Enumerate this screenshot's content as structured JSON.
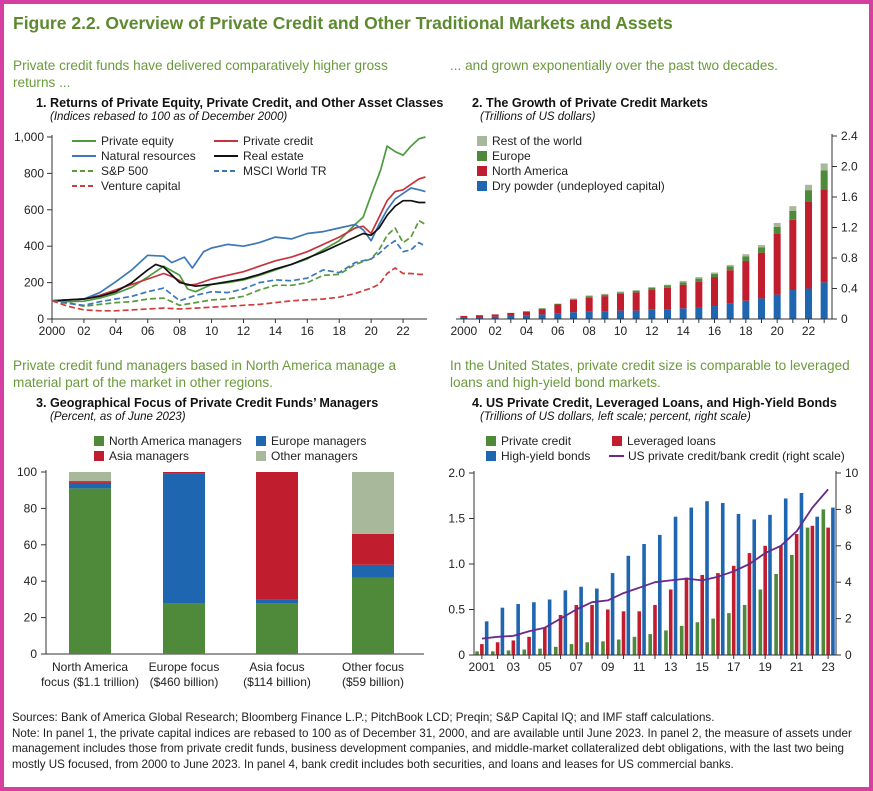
{
  "figure_title": "Figure 2.2. Overview of Private Credit and Other Traditional Markets and Assets",
  "sections": {
    "top_left": "Private credit funds have delivered comparatively higher gross returns ...",
    "top_right": "... and grown exponentially over the past two decades.",
    "bottom_left": "Private credit fund managers based in North America manage a material part of the market in other regions.",
    "bottom_right": "In the United States, private credit size is comparable to leveraged loans and high-yield bond markets."
  },
  "panels": {
    "p1": {
      "title": "1. Returns of Private Equity, Private Credit, and Other Asset Classes",
      "subtitle": "(Indices rebased to 100 as of December 2000)"
    },
    "p2": {
      "title": "2. The Growth of Private Credit Markets",
      "subtitle": "(Trillions of US dollars)"
    },
    "p3": {
      "title": "3. Geographical Focus of Private Credit Funds’ Managers",
      "subtitle": "(Percent, as of June 2023)"
    },
    "p4": {
      "title": "4. US Private Credit, Leveraged Loans, and High-Yield Bonds",
      "subtitle": "(Trillions of US dollars, left scale; percent, right scale)"
    }
  },
  "notes": {
    "sources": "Sources: Bank of America Global Research; Bloomberg Finance L.P.; PitchBook LCD; Preqin; S&P Capital IQ; and IMF staff calculations.",
    "note": "Note: In panel 1, the private capital indices are rebased to 100 as of December 31, 2000, and are available until June 2023. In panel 2, the measure of assets under management includes those from private credit funds, business development companies, and middle-market collateralized debt obligations, with the last two being mostly US focused, from 2000 to June 2023. In panel 4, bank credit includes both securities, and loans and leases for US commercial banks."
  },
  "chart_data": [
    {
      "type": "line",
      "panel": "p1",
      "x_ticks": [
        2000,
        2002,
        2004,
        2006,
        2008,
        2010,
        2012,
        2014,
        2016,
        2018,
        2020,
        2022
      ],
      "x_tick_labels": [
        "2000",
        "02",
        "04",
        "06",
        "08",
        "10",
        "12",
        "14",
        "16",
        "18",
        "20",
        "22"
      ],
      "xlim": [
        2000,
        2023.5
      ],
      "ylim": [
        0,
        1000
      ],
      "y_ticks": [
        0,
        200,
        400,
        600,
        800,
        1000
      ],
      "y_tick_labels": [
        "0",
        "200",
        "400",
        "600",
        "800",
        "1,000"
      ],
      "series": [
        {
          "name": "Private equity",
          "color": "#4e9a3f",
          "dash": "solid",
          "x": [
            2000,
            2001,
            2002,
            2003,
            2004,
            2005,
            2006,
            2007,
            2008,
            2008.5,
            2009,
            2010,
            2011,
            2012,
            2013,
            2014,
            2015,
            2016,
            2017,
            2018,
            2019,
            2019.5,
            2020,
            2020.6,
            2021,
            2021.5,
            2022,
            2022.5,
            2023,
            2023.4
          ],
          "values": [
            100,
            95,
            98,
            115,
            140,
            175,
            230,
            290,
            240,
            165,
            150,
            190,
            200,
            215,
            240,
            270,
            300,
            330,
            380,
            430,
            520,
            560,
            680,
            820,
            950,
            920,
            900,
            950,
            990,
            1000
          ]
        },
        {
          "name": "Private credit",
          "color": "#c8323c",
          "dash": "solid",
          "x": [
            2000,
            2001,
            2002,
            2003,
            2004,
            2005,
            2006,
            2007,
            2007.6,
            2008.5,
            2009,
            2010,
            2011,
            2012,
            2013,
            2014,
            2015,
            2016,
            2017,
            2018,
            2019,
            2019.5,
            2020,
            2020.5,
            2021,
            2021.5,
            2022,
            2022.5,
            2023,
            2023.4
          ],
          "values": [
            100,
            105,
            110,
            130,
            160,
            190,
            220,
            250,
            230,
            185,
            190,
            220,
            240,
            260,
            290,
            320,
            340,
            370,
            410,
            450,
            500,
            510,
            470,
            560,
            650,
            700,
            710,
            740,
            770,
            780
          ]
        },
        {
          "name": "Natural resources",
          "color": "#3b78b8",
          "dash": "solid",
          "x": [
            2000,
            2001,
            2002,
            2003,
            2004,
            2005,
            2006,
            2007,
            2007.5,
            2008.3,
            2008.8,
            2009.5,
            2010,
            2011,
            2012,
            2013,
            2014,
            2015,
            2016,
            2017,
            2018,
            2019,
            2019.5,
            2020,
            2020.5,
            2021,
            2021.5,
            2022,
            2022.5,
            2023,
            2023.4
          ],
          "values": [
            100,
            105,
            110,
            145,
            205,
            270,
            350,
            345,
            310,
            340,
            280,
            370,
            390,
            410,
            400,
            420,
            450,
            440,
            470,
            480,
            500,
            520,
            490,
            430,
            520,
            600,
            660,
            690,
            720,
            710,
            700
          ]
        },
        {
          "name": "Real estate",
          "color": "#111111",
          "dash": "solid",
          "x": [
            2000,
            2001,
            2002,
            2003,
            2004,
            2005,
            2006,
            2006.5,
            2007,
            2008,
            2009,
            2010,
            2011,
            2012,
            2013,
            2014,
            2015,
            2016,
            2017,
            2018,
            2019,
            2019.5,
            2020,
            2020.5,
            2021,
            2021.5,
            2022,
            2022.5,
            2023,
            2023.4
          ],
          "values": [
            100,
            105,
            110,
            125,
            150,
            200,
            270,
            300,
            285,
            200,
            180,
            190,
            205,
            220,
            245,
            275,
            300,
            335,
            370,
            410,
            450,
            470,
            460,
            500,
            570,
            620,
            650,
            650,
            640,
            640
          ]
        },
        {
          "name": "S&P 500",
          "color": "#5a9a3c",
          "dash": "dash",
          "x": [
            2000,
            2001,
            2002,
            2003,
            2004,
            2005,
            2006,
            2007,
            2008,
            2009,
            2010,
            2011,
            2012,
            2013,
            2014,
            2015,
            2016,
            2017,
            2018,
            2019,
            2020,
            2020.5,
            2021,
            2021.5,
            2022,
            2022.5,
            2023,
            2023.4
          ],
          "values": [
            100,
            90,
            70,
            80,
            90,
            95,
            110,
            115,
            75,
            90,
            105,
            110,
            125,
            160,
            185,
            185,
            200,
            240,
            245,
            300,
            330,
            380,
            460,
            500,
            420,
            450,
            540,
            520
          ]
        },
        {
          "name": "MSCI World TR",
          "color": "#3b78b8",
          "dash": "dash",
          "x": [
            2000,
            2001,
            2002,
            2003,
            2004,
            2005,
            2006,
            2007,
            2008,
            2009,
            2010,
            2011,
            2012,
            2013,
            2014,
            2015,
            2016,
            2017,
            2018,
            2019,
            2020,
            2020.5,
            2021,
            2021.5,
            2022,
            2022.5,
            2023,
            2023.4
          ],
          "values": [
            100,
            85,
            75,
            95,
            110,
            125,
            150,
            170,
            100,
            130,
            150,
            145,
            165,
            200,
            215,
            210,
            225,
            270,
            255,
            310,
            330,
            360,
            400,
            430,
            370,
            380,
            420,
            400
          ]
        },
        {
          "name": "Venture capital",
          "color": "#d03c3c",
          "dash": "dash",
          "x": [
            2000,
            2001,
            2002,
            2003,
            2004,
            2005,
            2006,
            2007,
            2008,
            2009,
            2010,
            2011,
            2012,
            2013,
            2014,
            2015,
            2016,
            2017,
            2018,
            2019,
            2020,
            2020.5,
            2021,
            2021.5,
            2022,
            2022.5,
            2023,
            2023.4
          ],
          "values": [
            100,
            70,
            50,
            45,
            45,
            50,
            55,
            60,
            55,
            60,
            65,
            70,
            75,
            80,
            90,
            100,
            105,
            110,
            120,
            140,
            170,
            190,
            250,
            280,
            250,
            250,
            245,
            245
          ]
        }
      ]
    },
    {
      "type": "bar",
      "stacked": true,
      "panel": "p2",
      "categories": [
        2000,
        2001,
        2002,
        2003,
        2004,
        2005,
        2006,
        2007,
        2008,
        2009,
        2010,
        2011,
        2012,
        2013,
        2014,
        2015,
        2016,
        2017,
        2018,
        2019,
        2020,
        2021,
        2022,
        2023
      ],
      "x_tick_labels": [
        "2000",
        "02",
        "04",
        "06",
        "08",
        "10",
        "12",
        "14",
        "16",
        "18",
        "20",
        "22"
      ],
      "ylim": [
        0,
        2.4
      ],
      "y_ticks": [
        0,
        0.4,
        0.8,
        1.2,
        1.6,
        2.0,
        2.4
      ],
      "y_tick_labels": [
        "0",
        "0.4",
        "0.8",
        "1.2",
        "1.6",
        "2.0",
        "2.4"
      ],
      "axis_side": "right",
      "series": [
        {
          "name": "Dry powder (undeployed capital)",
          "color": "#1f66b0",
          "values": [
            0.02,
            0.02,
            0.03,
            0.04,
            0.05,
            0.06,
            0.07,
            0.09,
            0.1,
            0.1,
            0.11,
            0.11,
            0.12,
            0.13,
            0.14,
            0.15,
            0.17,
            0.2,
            0.24,
            0.27,
            0.32,
            0.38,
            0.4,
            0.48
          ]
        },
        {
          "name": "North America",
          "color": "#c01e2e",
          "values": [
            0.02,
            0.03,
            0.03,
            0.04,
            0.05,
            0.07,
            0.12,
            0.16,
            0.18,
            0.2,
            0.22,
            0.24,
            0.26,
            0.28,
            0.31,
            0.34,
            0.38,
            0.44,
            0.52,
            0.6,
            0.8,
            0.92,
            1.14,
            1.22
          ]
        },
        {
          "name": "Europe",
          "color": "#4e8a3a",
          "values": [
            0.0,
            0.0,
            0.0,
            0.0,
            0.0,
            0.01,
            0.01,
            0.01,
            0.02,
            0.02,
            0.02,
            0.02,
            0.03,
            0.03,
            0.03,
            0.04,
            0.04,
            0.05,
            0.06,
            0.07,
            0.09,
            0.12,
            0.15,
            0.25
          ]
        },
        {
          "name": "Rest of the world",
          "color": "#a8b89a",
          "values": [
            0.0,
            0.0,
            0.0,
            0.0,
            0.0,
            0.0,
            0.0,
            0.01,
            0.01,
            0.01,
            0.01,
            0.01,
            0.01,
            0.01,
            0.02,
            0.02,
            0.02,
            0.02,
            0.03,
            0.03,
            0.05,
            0.06,
            0.07,
            0.09
          ]
        }
      ]
    },
    {
      "type": "bar",
      "stacked": true,
      "panel": "p3",
      "categories": [
        "North America focus ($1.1 trillion)",
        "Europe focus ($460 billion)",
        "Asia focus ($114 billion)",
        "Other focus ($59 billion)"
      ],
      "category_lines": [
        [
          "North America",
          "focus ($1.1 trillion)"
        ],
        [
          "Europe focus",
          "($460 billion)"
        ],
        [
          "Asia focus",
          "($114 billion)"
        ],
        [
          "Other focus",
          "($59 billion)"
        ]
      ],
      "ylim": [
        0,
        100
      ],
      "y_ticks": [
        0,
        20,
        40,
        60,
        80,
        100
      ],
      "y_tick_labels": [
        "0",
        "20",
        "40",
        "60",
        "80",
        "100"
      ],
      "series": [
        {
          "name": "North America managers",
          "color": "#4e8a3a",
          "values": [
            91,
            28,
            28,
            42
          ]
        },
        {
          "name": "Europe managers",
          "color": "#1f66b0",
          "values": [
            3,
            71,
            2,
            7
          ]
        },
        {
          "name": "Asia managers",
          "color": "#c01e2e",
          "values": [
            1,
            1,
            70,
            17
          ]
        },
        {
          "name": "Other managers",
          "color": "#a8b89a",
          "values": [
            5,
            0,
            0,
            34
          ]
        }
      ]
    },
    {
      "type": "bar",
      "panel": "p4",
      "categories": [
        2001,
        2002,
        2003,
        2004,
        2005,
        2006,
        2007,
        2008,
        2009,
        2010,
        2011,
        2012,
        2013,
        2014,
        2015,
        2016,
        2017,
        2018,
        2019,
        2020,
        2021,
        2022,
        2023
      ],
      "x_tick_labels": [
        "2001",
        "03",
        "05",
        "07",
        "09",
        "11",
        "13",
        "15",
        "17",
        "19",
        "21",
        "23"
      ],
      "ylim": [
        0,
        2.0
      ],
      "y_ticks": [
        0,
        0.5,
        1.0,
        1.5,
        2.0
      ],
      "y_tick_labels": [
        "0",
        "0.5",
        "1.0",
        "1.5",
        "2.0"
      ],
      "y2lim": [
        0,
        10
      ],
      "y2_ticks": [
        0,
        2,
        4,
        6,
        8,
        10
      ],
      "y2_tick_labels": [
        "0",
        "2",
        "4",
        "6",
        "8",
        "10"
      ],
      "series": [
        {
          "name": "Private credit",
          "color": "#4e8a3a",
          "values": [
            0.04,
            0.04,
            0.05,
            0.06,
            0.07,
            0.09,
            0.12,
            0.14,
            0.15,
            0.17,
            0.2,
            0.23,
            0.27,
            0.32,
            0.36,
            0.4,
            0.46,
            0.55,
            0.72,
            0.89,
            1.1,
            1.4,
            1.6
          ]
        },
        {
          "name": "Leveraged loans",
          "color": "#c01e2e",
          "values": [
            0.12,
            0.14,
            0.16,
            0.2,
            0.3,
            0.44,
            0.55,
            0.55,
            0.5,
            0.48,
            0.48,
            0.55,
            0.72,
            0.85,
            0.88,
            0.9,
            0.98,
            1.12,
            1.2,
            1.2,
            1.33,
            1.42,
            1.4
          ]
        },
        {
          "name": "High-yield bonds",
          "color": "#1f66b0",
          "values": [
            0.37,
            0.52,
            0.56,
            0.58,
            0.61,
            0.71,
            0.75,
            0.73,
            0.9,
            1.09,
            1.22,
            1.32,
            1.52,
            1.62,
            1.69,
            1.67,
            1.55,
            1.49,
            1.54,
            1.72,
            1.78,
            1.52,
            1.62
          ]
        },
        {
          "name": "US private credit/bank credit (right scale)",
          "color": "#6a2a8a",
          "type": "line",
          "axis": "right",
          "values": [
            0.9,
            1.0,
            1.05,
            1.3,
            1.5,
            2.0,
            2.5,
            2.9,
            3.0,
            3.4,
            3.7,
            4.0,
            4.1,
            4.2,
            4.1,
            4.3,
            4.6,
            5.0,
            5.6,
            6.0,
            6.8,
            8.1,
            9.1
          ]
        }
      ]
    }
  ]
}
